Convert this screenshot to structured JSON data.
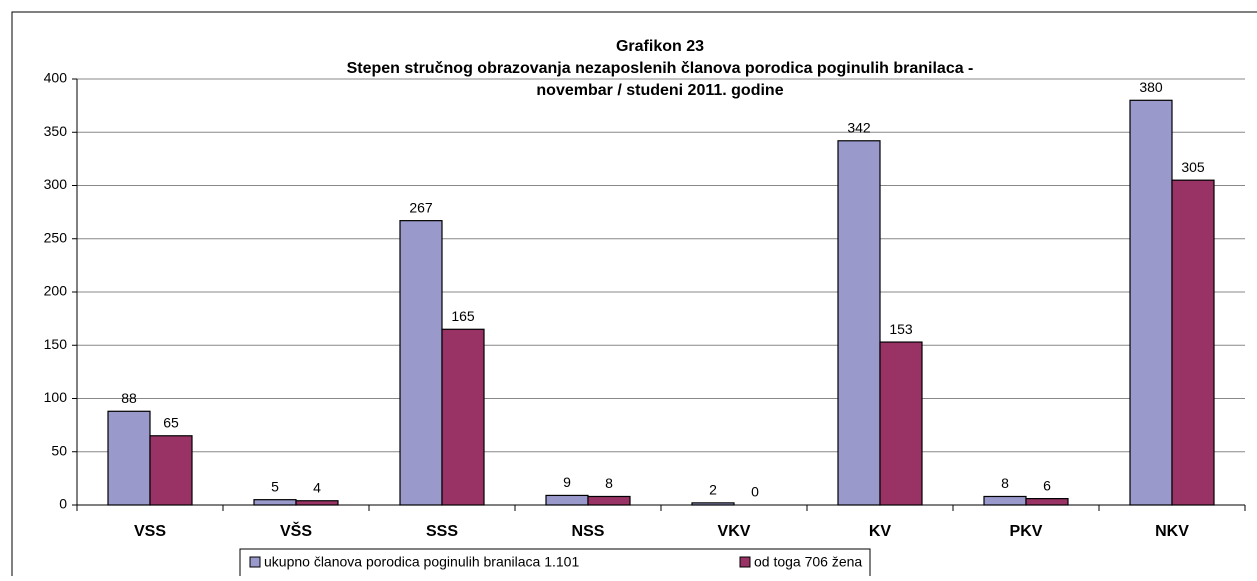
{
  "chart_data": {
    "type": "bar",
    "title": "Grafikon 23",
    "subtitle": "Stepen stručnog obrazovanja nezaposlenih članova porodica poginulih branilaca  - novembar / studeni  2011. godine",
    "categories": [
      "VSS",
      "VŠS",
      "SSS",
      "NSS",
      "VKV",
      "KV",
      "PKV",
      "NKV"
    ],
    "series": [
      {
        "name": "ukupno članova porodica poginulih branilaca 1.101",
        "color": "#9999cc",
        "values": [
          88,
          5,
          267,
          9,
          2,
          342,
          8,
          380
        ]
      },
      {
        "name": "od toga 706 žena",
        "color": "#993366",
        "values": [
          65,
          4,
          165,
          8,
          0,
          153,
          6,
          305
        ]
      }
    ],
    "ylim": [
      0,
      400
    ],
    "yticks": [
      0,
      50,
      100,
      150,
      200,
      250,
      300,
      350,
      400
    ],
    "grid": true,
    "legend": "bottom"
  }
}
